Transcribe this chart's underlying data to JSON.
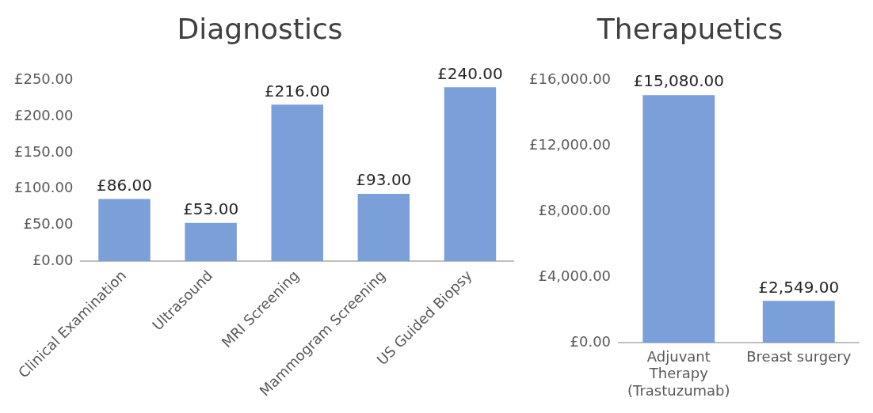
{
  "chart_data": [
    {
      "type": "bar",
      "title": "Diagnostics",
      "categories": [
        "Clinical Examination",
        "Ultrasound",
        "MRI Screening",
        "Mammogram Screening",
        "US Guided Biopsy"
      ],
      "values": [
        86,
        53,
        216,
        93,
        240
      ],
      "color": "#7b9fd8",
      "value_labels": [
        "£86.00",
        "£53.00",
        "£216.00",
        "£93.00",
        "£240.00"
      ],
      "ylim": [
        0,
        250
      ],
      "yticks": [
        {
          "value": 0,
          "label": "£0.00"
        },
        {
          "value": 50,
          "label": "£50.00"
        },
        {
          "value": 100,
          "label": "£100.00"
        },
        {
          "value": 150,
          "label": "£150.00"
        },
        {
          "value": 200,
          "label": "£200.00"
        },
        {
          "value": 250,
          "label": "£250.00"
        }
      ],
      "grid": false,
      "legend": false
    },
    {
      "type": "bar",
      "title": "Therapuetics",
      "categories": [
        "Adjuvant Therapy (Trastuzumab)",
        "Breast surgery"
      ],
      "values": [
        15080,
        2549
      ],
      "color": "#7b9fd8",
      "value_labels": [
        "£15,080.00",
        "£2,549.00"
      ],
      "ylim": [
        0,
        16000
      ],
      "yticks": [
        {
          "value": 0,
          "label": "£0.00"
        },
        {
          "value": 4000,
          "label": "£4,000.00"
        },
        {
          "value": 8000,
          "label": "£8,000.00"
        },
        {
          "value": 12000,
          "label": "£12,000.00"
        },
        {
          "value": 16000,
          "label": "£16,000.00"
        }
      ],
      "grid": false,
      "legend": false
    }
  ]
}
